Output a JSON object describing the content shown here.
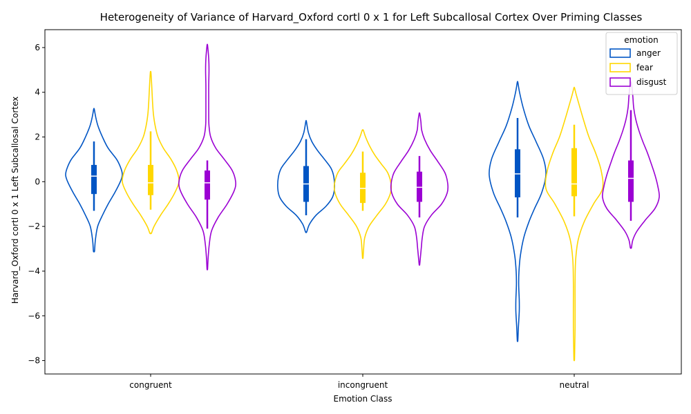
{
  "chart_data": {
    "type": "violin",
    "title": "Heterogeneity of Variance of Harvard_Oxford cortl 0 x 1 for Left Subcallosal Cortex Over Priming Classes",
    "xlabel": "Emotion Class",
    "ylabel": "Harvard_Oxford cortl 0 x 1 Left Subcallosal Cortex",
    "categories": [
      "congruent",
      "incongruent",
      "neutral"
    ],
    "ylim": [
      -8.6,
      6.8
    ],
    "yticks": [
      -8,
      -6,
      -4,
      -2,
      0,
      2,
      4,
      6
    ],
    "grid": false,
    "legend": {
      "title": "emotion",
      "position": "top-right"
    },
    "series": [
      {
        "name": "anger",
        "color": "#0055c4",
        "violins": [
          {
            "min": -3.1,
            "max": 3.25,
            "q1": -0.55,
            "median": 0.25,
            "q3": 0.75,
            "wlo": -1.3,
            "whi": 1.8,
            "profile": [
              [
                -3.1,
                0.02
              ],
              [
                -2.6,
                0.05
              ],
              [
                -2.0,
                0.13
              ],
              [
                -1.5,
                0.3
              ],
              [
                -1.0,
                0.5
              ],
              [
                -0.5,
                0.73
              ],
              [
                0.0,
                0.93
              ],
              [
                0.3,
                1.0
              ],
              [
                0.6,
                0.95
              ],
              [
                1.0,
                0.8
              ],
              [
                1.5,
                0.5
              ],
              [
                2.0,
                0.3
              ],
              [
                2.5,
                0.14
              ],
              [
                2.9,
                0.06
              ],
              [
                3.25,
                0.01
              ]
            ]
          },
          {
            "min": -2.25,
            "max": 2.7,
            "q1": -0.9,
            "median": -0.1,
            "q3": 0.7,
            "wlo": -1.5,
            "whi": 1.9,
            "profile": [
              [
                -2.25,
                0.02
              ],
              [
                -1.9,
                0.12
              ],
              [
                -1.5,
                0.35
              ],
              [
                -1.1,
                0.7
              ],
              [
                -0.7,
                0.93
              ],
              [
                -0.3,
                1.0
              ],
              [
                0.2,
                0.98
              ],
              [
                0.6,
                0.88
              ],
              [
                1.0,
                0.65
              ],
              [
                1.4,
                0.4
              ],
              [
                1.8,
                0.2
              ],
              [
                2.2,
                0.08
              ],
              [
                2.7,
                0.01
              ]
            ]
          },
          {
            "min": -7.1,
            "max": 4.45,
            "q1": -0.7,
            "median": 0.35,
            "q3": 1.45,
            "wlo": -1.6,
            "whi": 2.85,
            "profile": [
              [
                -7.1,
                0.01
              ],
              [
                -6.5,
                0.03
              ],
              [
                -5.8,
                0.06
              ],
              [
                -5.3,
                0.06
              ],
              [
                -4.6,
                0.04
              ],
              [
                -4.0,
                0.05
              ],
              [
                -3.3,
                0.1
              ],
              [
                -2.5,
                0.22
              ],
              [
                -1.8,
                0.4
              ],
              [
                -1.2,
                0.6
              ],
              [
                -0.5,
                0.85
              ],
              [
                0.3,
                1.0
              ],
              [
                1.0,
                0.92
              ],
              [
                1.8,
                0.65
              ],
              [
                2.5,
                0.4
              ],
              [
                3.3,
                0.2
              ],
              [
                4.0,
                0.07
              ],
              [
                4.45,
                0.01
              ]
            ]
          }
        ]
      },
      {
        "name": "fear",
        "color": "#ffd700",
        "violins": [
          {
            "min": -2.3,
            "max": 4.9,
            "q1": -0.6,
            "median": -0.05,
            "q3": 0.75,
            "wlo": -1.25,
            "whi": 2.25,
            "profile": [
              [
                -2.3,
                0.03
              ],
              [
                -2.0,
                0.12
              ],
              [
                -1.5,
                0.35
              ],
              [
                -1.0,
                0.62
              ],
              [
                -0.5,
                0.85
              ],
              [
                0.0,
                1.0
              ],
              [
                0.5,
                0.92
              ],
              [
                1.0,
                0.72
              ],
              [
                1.5,
                0.45
              ],
              [
                2.0,
                0.26
              ],
              [
                2.5,
                0.16
              ],
              [
                3.0,
                0.1
              ],
              [
                3.5,
                0.07
              ],
              [
                4.0,
                0.05
              ],
              [
                4.5,
                0.03
              ],
              [
                4.9,
                0.01
              ]
            ]
          },
          {
            "min": -3.4,
            "max": 2.3,
            "q1": -0.95,
            "median": -0.3,
            "q3": 0.4,
            "wlo": -1.3,
            "whi": 1.35,
            "profile": [
              [
                -3.4,
                0.01
              ],
              [
                -3.0,
                0.03
              ],
              [
                -2.5,
                0.07
              ],
              [
                -2.0,
                0.22
              ],
              [
                -1.5,
                0.5
              ],
              [
                -1.0,
                0.8
              ],
              [
                -0.5,
                0.98
              ],
              [
                -0.1,
                1.0
              ],
              [
                0.4,
                0.88
              ],
              [
                0.8,
                0.65
              ],
              [
                1.2,
                0.42
              ],
              [
                1.6,
                0.24
              ],
              [
                2.0,
                0.1
              ],
              [
                2.3,
                0.02
              ]
            ]
          },
          {
            "min": -7.95,
            "max": 4.2,
            "q1": -0.65,
            "median": -0.1,
            "q3": 1.5,
            "wlo": -1.55,
            "whi": 2.55,
            "profile": [
              [
                -7.95,
                0.01
              ],
              [
                -7.3,
                0.02
              ],
              [
                -6.5,
                0.03
              ],
              [
                -5.5,
                0.03
              ],
              [
                -4.5,
                0.03
              ],
              [
                -3.5,
                0.05
              ],
              [
                -2.6,
                0.14
              ],
              [
                -1.8,
                0.35
              ],
              [
                -1.0,
                0.68
              ],
              [
                -0.3,
                1.0
              ],
              [
                0.5,
                0.95
              ],
              [
                1.3,
                0.75
              ],
              [
                2.0,
                0.52
              ],
              [
                2.8,
                0.32
              ],
              [
                3.5,
                0.16
              ],
              [
                3.9,
                0.07
              ],
              [
                4.2,
                0.01
              ]
            ]
          }
        ]
      },
      {
        "name": "disgust",
        "color": "#9b00d3",
        "violins": [
          {
            "min": -3.9,
            "max": 6.1,
            "q1": -0.8,
            "median": -0.05,
            "q3": 0.5,
            "wlo": -2.1,
            "whi": 0.95,
            "profile": [
              [
                -3.9,
                0.01
              ],
              [
                -3.4,
                0.03
              ],
              [
                -2.8,
                0.07
              ],
              [
                -2.2,
                0.15
              ],
              [
                -1.6,
                0.38
              ],
              [
                -1.0,
                0.7
              ],
              [
                -0.4,
                0.95
              ],
              [
                0.0,
                1.0
              ],
              [
                0.5,
                0.88
              ],
              [
                1.0,
                0.6
              ],
              [
                1.5,
                0.3
              ],
              [
                2.0,
                0.12
              ],
              [
                2.5,
                0.06
              ],
              [
                3.0,
                0.05
              ],
              [
                3.7,
                0.05
              ],
              [
                4.3,
                0.05
              ],
              [
                5.0,
                0.06
              ],
              [
                5.5,
                0.05
              ],
              [
                6.1,
                0.01
              ]
            ]
          },
          {
            "min": -3.7,
            "max": 3.05,
            "q1": -0.9,
            "median": -0.25,
            "q3": 0.45,
            "wlo": -1.6,
            "whi": 1.15,
            "profile": [
              [
                -3.7,
                0.01
              ],
              [
                -3.3,
                0.04
              ],
              [
                -2.9,
                0.07
              ],
              [
                -2.5,
                0.1
              ],
              [
                -2.0,
                0.18
              ],
              [
                -1.5,
                0.42
              ],
              [
                -1.0,
                0.78
              ],
              [
                -0.5,
                0.98
              ],
              [
                -0.1,
                1.0
              ],
              [
                0.4,
                0.9
              ],
              [
                0.9,
                0.65
              ],
              [
                1.4,
                0.38
              ],
              [
                1.9,
                0.18
              ],
              [
                2.3,
                0.08
              ],
              [
                2.7,
                0.05
              ],
              [
                3.05,
                0.01
              ]
            ]
          },
          {
            "min": -2.95,
            "max": 4.45,
            "q1": -0.9,
            "median": 0.15,
            "q3": 0.95,
            "wlo": -1.75,
            "whi": 3.2,
            "profile": [
              [
                -2.95,
                0.02
              ],
              [
                -2.6,
                0.07
              ],
              [
                -2.2,
                0.22
              ],
              [
                -1.7,
                0.52
              ],
              [
                -1.2,
                0.85
              ],
              [
                -0.7,
                1.0
              ],
              [
                -0.2,
                0.95
              ],
              [
                0.3,
                0.85
              ],
              [
                0.8,
                0.72
              ],
              [
                1.3,
                0.58
              ],
              [
                1.8,
                0.42
              ],
              [
                2.3,
                0.28
              ],
              [
                2.8,
                0.17
              ],
              [
                3.3,
                0.1
              ],
              [
                3.8,
                0.07
              ],
              [
                4.2,
                0.04
              ],
              [
                4.45,
                0.01
              ]
            ]
          }
        ]
      }
    ]
  }
}
